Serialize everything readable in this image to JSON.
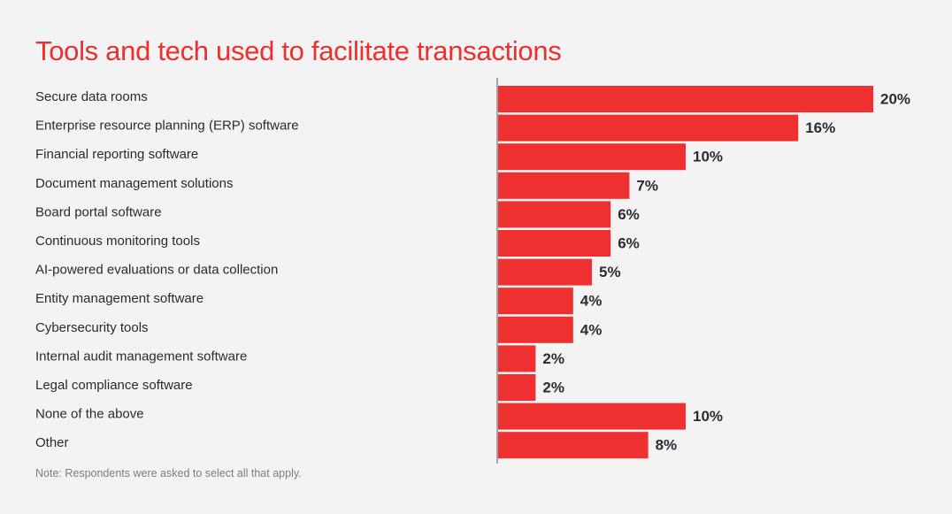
{
  "chart_data": {
    "type": "bar",
    "orientation": "horizontal",
    "title": "Tools and tech used to facilitate transactions",
    "categories": [
      "Secure data rooms",
      "Enterprise resource planning (ERP) software",
      "Financial reporting software",
      "Document management solutions",
      "Board portal software",
      "Continuous monitoring tools",
      "AI-powered evaluations or data collection",
      "Entity management software",
      "Cybersecurity tools",
      "Internal audit management software",
      "Legal compliance software",
      "None of the above",
      "Other"
    ],
    "values": [
      20,
      16,
      10,
      7,
      6,
      6,
      5,
      4,
      4,
      2,
      2,
      10,
      8
    ],
    "value_labels": [
      "20%",
      "16%",
      "10%",
      "7%",
      "6%",
      "6%",
      "5%",
      "4%",
      "4%",
      "2%",
      "2%",
      "10%",
      "8%"
    ],
    "xlim": [
      0,
      20
    ],
    "grid": false,
    "legend": "none",
    "note": "Note: Respondents were asked to select all that apply."
  },
  "colors": {
    "bar": "#ee3030",
    "title": "#ee2f2f",
    "axis": "#8a8a8a",
    "background": "#f3f3f3"
  }
}
